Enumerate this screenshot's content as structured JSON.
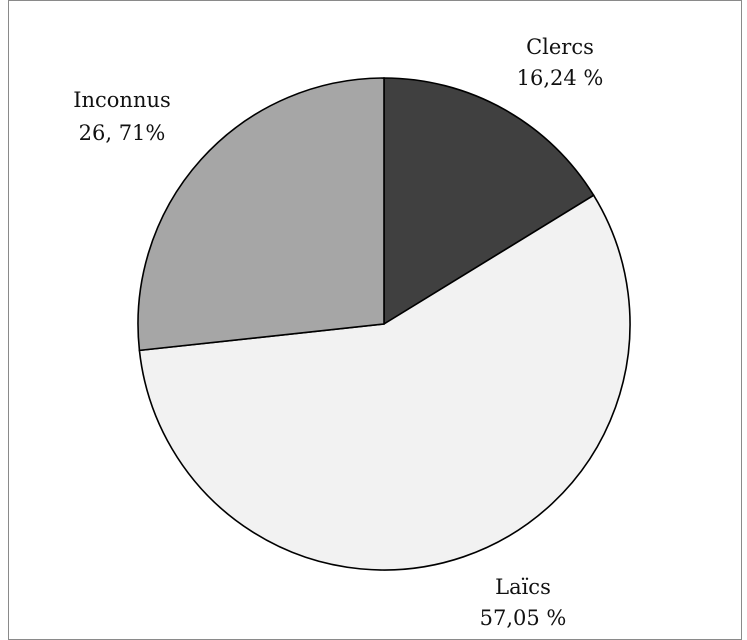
{
  "chart_data": {
    "type": "pie",
    "start_angle_deg": 0,
    "direction": "clockwise",
    "slices": [
      {
        "name": "Clercs",
        "value": 16.24,
        "label": "Clercs",
        "percent_text": "16,24 %",
        "color": "#404040"
      },
      {
        "name": "Laïcs",
        "value": 57.05,
        "label": "Laïcs",
        "percent_text": "57,05 %",
        "color": "#f2f2f2"
      },
      {
        "name": "Inconnus",
        "value": 26.71,
        "label": "Inconnus",
        "percent_text": "26, 71%",
        "color": "#a6a6a6"
      }
    ],
    "grid": false,
    "legend": "none"
  }
}
